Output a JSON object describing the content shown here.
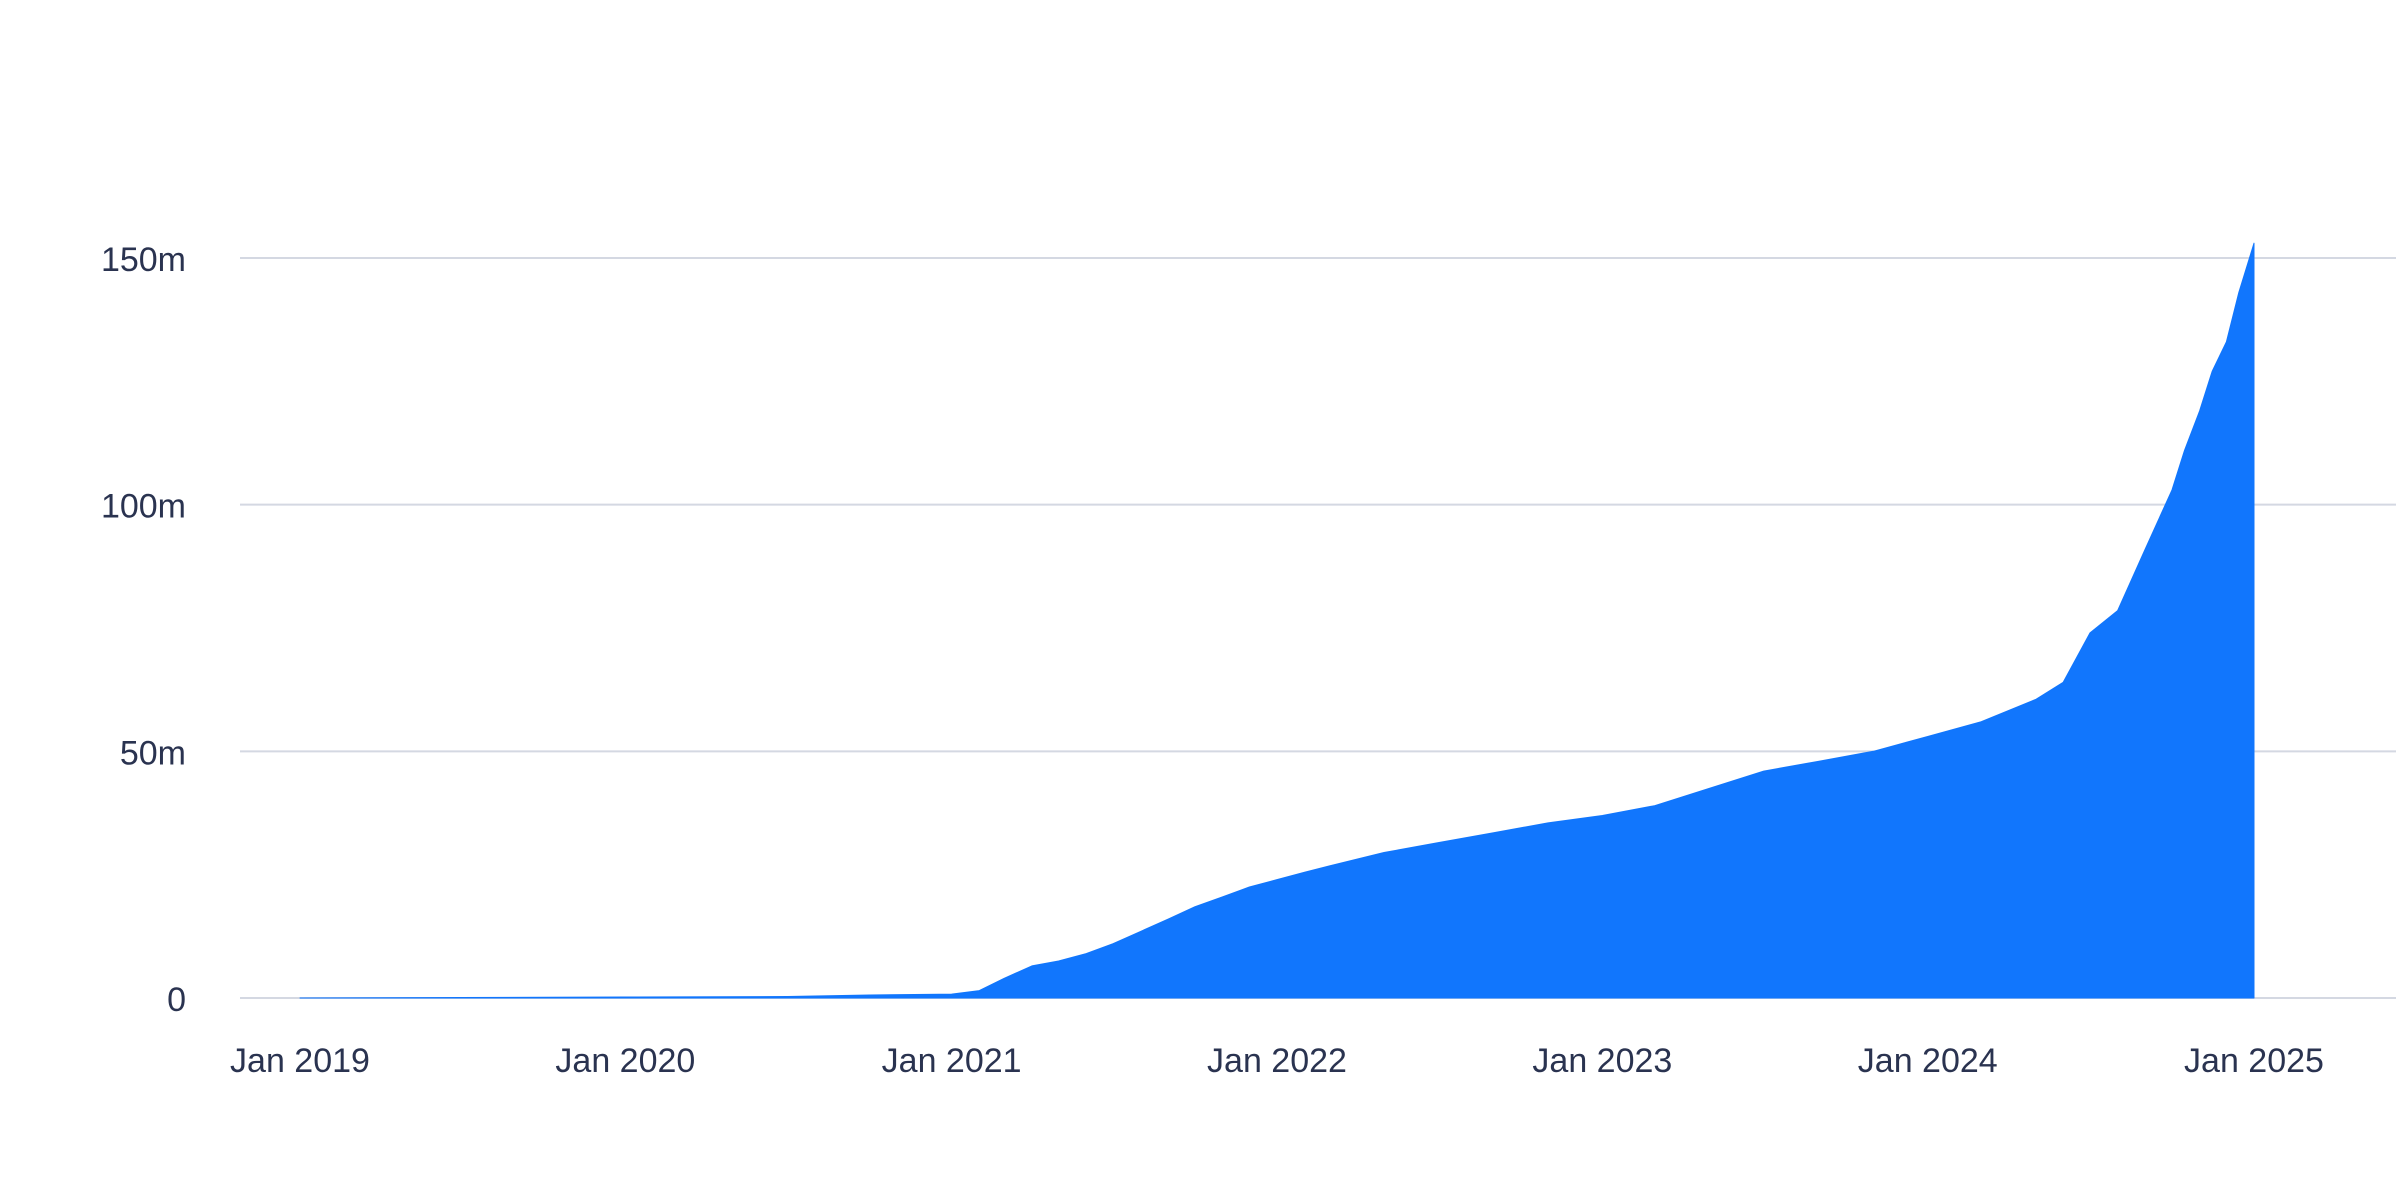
{
  "chart_data": {
    "type": "area",
    "title": "",
    "xlabel": "",
    "ylabel": "",
    "ylim": [
      0,
      150
    ],
    "y_unit_suffix": "m",
    "yticks": [
      {
        "value": 0,
        "label": "0"
      },
      {
        "value": 50,
        "label": "50m"
      },
      {
        "value": 100,
        "label": "100m"
      },
      {
        "value": 150,
        "label": "150m"
      }
    ],
    "xlim": [
      "2019-01-01",
      "2025-06-01"
    ],
    "xticks": [
      {
        "date": "2019-01-01",
        "label": "Jan 2019"
      },
      {
        "date": "2020-01-01",
        "label": "Jan 2020"
      },
      {
        "date": "2021-01-01",
        "label": "Jan 2021"
      },
      {
        "date": "2022-01-01",
        "label": "Jan 2022"
      },
      {
        "date": "2023-01-01",
        "label": "Jan 2023"
      },
      {
        "date": "2024-01-01",
        "label": "Jan 2024"
      },
      {
        "date": "2025-01-01",
        "label": "Jan 2025"
      }
    ],
    "grid": true,
    "legend": "none",
    "colors": {
      "area": "#1176FD",
      "grid": "#D4D8E2",
      "tick_text": "#2A3350"
    },
    "series": [
      {
        "x": [
          "2019-01-01",
          "2019-07-01",
          "2020-01-01",
          "2020-07-01",
          "2020-10-01",
          "2021-01-01",
          "2021-02-01",
          "2021-03-01",
          "2021-04-01",
          "2021-05-01",
          "2021-06-01",
          "2021-07-01",
          "2021-08-01",
          "2021-09-01",
          "2021-10-01",
          "2021-11-01",
          "2021-12-01",
          "2022-01-01",
          "2022-02-01",
          "2022-03-01",
          "2022-05-01",
          "2022-07-01",
          "2022-09-01",
          "2022-11-01",
          "2023-01-01",
          "2023-03-01",
          "2023-05-01",
          "2023-07-01",
          "2023-09-01",
          "2023-11-01",
          "2024-01-01",
          "2024-03-01",
          "2024-05-01",
          "2024-06-01",
          "2024-07-01",
          "2024-08-01",
          "2024-09-01",
          "2024-10-01",
          "2024-10-15",
          "2024-11-01",
          "2024-11-15",
          "2024-12-01",
          "2024-12-15",
          "2025-01-01"
        ],
        "values": [
          0,
          0.1,
          0.2,
          0.3,
          0.6,
          0.8,
          1.5,
          4.0,
          6.5,
          7.5,
          9.0,
          11.0,
          13.5,
          16.0,
          18.5,
          20.5,
          22.5,
          24.0,
          25.5,
          26.8,
          29.5,
          31.5,
          33.5,
          35.5,
          37.0,
          39.0,
          42.5,
          46.0,
          48.0,
          50.0,
          53.0,
          56.0,
          60.5,
          64.0,
          74.0,
          78.5,
          91.0,
          103.0,
          111.0,
          119.0,
          127.0,
          133.0,
          143.0,
          153.0
        ]
      }
    ]
  }
}
